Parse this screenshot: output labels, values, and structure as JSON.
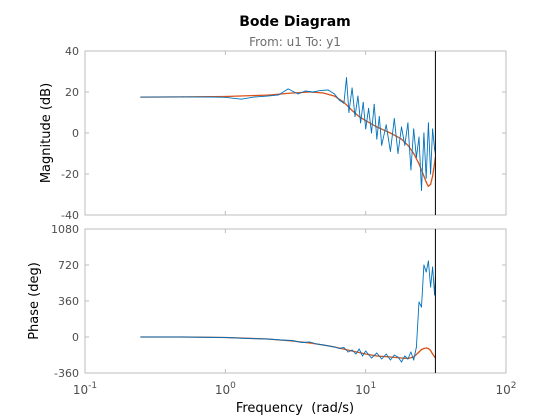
{
  "chart_data": {
    "type": "line",
    "title": "Bode Diagram",
    "subtitle": "From: u1  To: y1",
    "xlabel": "Frequency  (rad/s)",
    "xscale": "log",
    "xlim": [
      0.1,
      100
    ],
    "xticks": [
      {
        "value": 0.1,
        "base": "10",
        "exp": "-1"
      },
      {
        "value": 1,
        "base": "10",
        "exp": "0"
      },
      {
        "value": 10,
        "base": "10",
        "exp": "1"
      },
      {
        "value": 100,
        "base": "10",
        "exp": "2"
      }
    ],
    "vline_x": 31.4,
    "grid": false,
    "colors": {
      "measured": "#0072BD",
      "model": "#D95319",
      "axis": "#262626",
      "tick": "#4d4d4d",
      "marker": "#000000",
      "frame": "#bdbdbd"
    },
    "magnitude": {
      "ylabel": "Magnitude (dB)",
      "ylim": [
        -40,
        40
      ],
      "yticks": [
        "40",
        "20",
        "0",
        "-20",
        "-40"
      ],
      "model": {
        "x": [
          0.25,
          0.5,
          1,
          2,
          3,
          4,
          5,
          6,
          7,
          8,
          9,
          10,
          12,
          15,
          18,
          20,
          22,
          24,
          26,
          27,
          28,
          29,
          30,
          31.4
        ],
        "y": [
          17.5,
          17.6,
          17.8,
          18.5,
          19.5,
          20,
          19.5,
          18,
          15,
          11,
          8,
          6,
          3,
          0,
          -3,
          -6,
          -10,
          -15,
          -21,
          -24,
          -26,
          -25,
          -21,
          -12
        ]
      },
      "measured": {
        "x": [
          0.25,
          0.5,
          0.8,
          1,
          1.3,
          1.6,
          2,
          2.4,
          2.8,
          3.3,
          3.7,
          4.2,
          4.8,
          5.4,
          6,
          6.5,
          7,
          7.3,
          7.6,
          8,
          8.4,
          8.8,
          9.2,
          9.6,
          10,
          10.5,
          11,
          11.5,
          12,
          12.5,
          13,
          14,
          15,
          16,
          17,
          18,
          19,
          20,
          21,
          22,
          23,
          24,
          25,
          26,
          27,
          28,
          29,
          30,
          31,
          31.4
        ],
        "y": [
          17.5,
          17.6,
          17.5,
          17.4,
          16.5,
          17.5,
          18,
          18.6,
          21.5,
          19,
          20.5,
          20,
          20.8,
          21,
          19,
          16,
          14.5,
          27,
          10,
          22,
          8,
          18,
          5,
          15,
          2,
          12,
          0,
          14,
          -3,
          8,
          -6,
          4,
          -9,
          7,
          -10,
          3,
          -6,
          5,
          -18,
          2,
          -12,
          -2,
          -28,
          0,
          -22,
          5,
          -20,
          2,
          -8,
          -10
        ]
      }
    },
    "phase": {
      "ylabel": "Phase (deg)",
      "ylim": [
        -360,
        1080
      ],
      "yticks": [
        "1080",
        "720",
        "360",
        "0",
        "-360"
      ],
      "model": {
        "x": [
          0.25,
          0.5,
          1,
          2,
          3,
          4,
          5,
          6,
          8,
          10,
          12,
          15,
          18,
          20,
          22,
          24,
          25,
          26,
          27,
          28,
          29,
          30,
          31.4
        ],
        "y": [
          0,
          0,
          -5,
          -20,
          -40,
          -60,
          -80,
          -100,
          -140,
          -170,
          -190,
          -200,
          -210,
          -215,
          -200,
          -150,
          -125,
          -115,
          -110,
          -115,
          -135,
          -170,
          -210
        ]
      },
      "measured": {
        "x": [
          0.25,
          0.5,
          1,
          1.5,
          2,
          2.5,
          3,
          3.5,
          4,
          4.5,
          5,
          5.5,
          6,
          6.5,
          7,
          7.5,
          8,
          8.5,
          9,
          9.5,
          10,
          11,
          12,
          13,
          14,
          15,
          16,
          17,
          18,
          19,
          20,
          21,
          22,
          23,
          24,
          25,
          26,
          27,
          28,
          29,
          30,
          31,
          31.4
        ],
        "y": [
          0,
          0,
          -5,
          -15,
          -20,
          -30,
          -35,
          -55,
          -50,
          -70,
          -80,
          -90,
          -100,
          -115,
          -105,
          -150,
          -130,
          -170,
          -120,
          -190,
          -140,
          -210,
          -160,
          -220,
          -170,
          -230,
          -180,
          -200,
          -250,
          -190,
          -220,
          -150,
          -230,
          -100,
          350,
          300,
          720,
          650,
          760,
          500,
          700,
          420,
          600
        ]
      }
    }
  }
}
